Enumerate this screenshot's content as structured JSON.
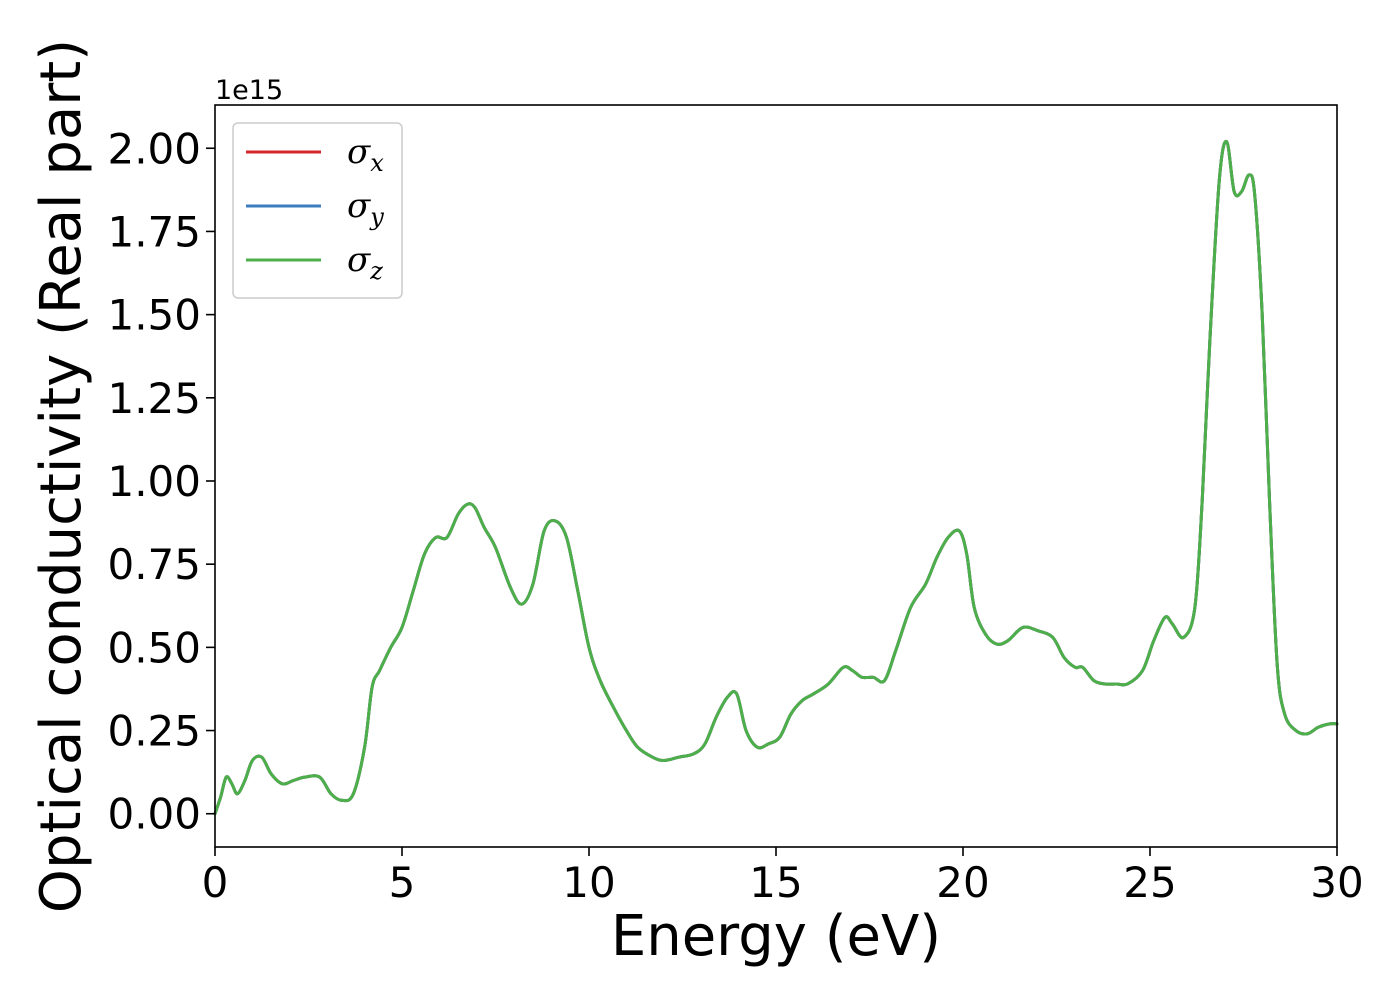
{
  "chart_data": {
    "type": "line",
    "title": "",
    "xlabel": "Energy (eV)",
    "ylabel": "Optical conductivity (Real part)",
    "y_offset_label": "1e15",
    "xlim": [
      0,
      30
    ],
    "ylim": [
      -0.1,
      2.13
    ],
    "x_ticks": [
      0,
      5,
      10,
      15,
      20,
      25,
      30
    ],
    "x_tick_labels": [
      "0",
      "5",
      "10",
      "15",
      "20",
      "25",
      "30"
    ],
    "y_ticks": [
      0.0,
      0.25,
      0.5,
      0.75,
      1.0,
      1.25,
      1.5,
      1.75,
      2.0
    ],
    "y_tick_labels": [
      "0.00",
      "0.25",
      "0.50",
      "0.75",
      "1.00",
      "1.25",
      "1.50",
      "1.75",
      "2.00"
    ],
    "grid": false,
    "legend_position": "top-left",
    "legend": [
      {
        "symbol": "σ",
        "sub": "x",
        "color": "#d62728"
      },
      {
        "symbol": "σ",
        "sub": "y",
        "color": "#3b7dbf"
      },
      {
        "symbol": "σ",
        "sub": "z",
        "color": "#4daf4a"
      }
    ],
    "x": [
      0,
      0.15,
      0.3,
      0.45,
      0.6,
      0.8,
      1.0,
      1.25,
      1.5,
      1.8,
      2.1,
      2.4,
      2.8,
      3.1,
      3.4,
      3.7,
      4.0,
      4.2,
      4.4,
      4.7,
      5.0,
      5.3,
      5.6,
      5.9,
      6.2,
      6.5,
      6.75,
      6.95,
      7.2,
      7.5,
      7.9,
      8.2,
      8.5,
      8.8,
      9.1,
      9.4,
      9.7,
      10.0,
      10.3,
      10.7,
      11.0,
      11.3,
      11.7,
      12.0,
      12.4,
      12.8,
      13.1,
      13.4,
      13.7,
      13.95,
      14.2,
      14.5,
      14.8,
      15.1,
      15.4,
      15.7,
      16.0,
      16.4,
      16.8,
      17.05,
      17.3,
      17.6,
      17.9,
      18.2,
      18.6,
      19.0,
      19.3,
      19.6,
      19.9,
      20.1,
      20.3,
      20.6,
      20.9,
      21.2,
      21.6,
      22.0,
      22.4,
      22.7,
      23.0,
      23.2,
      23.5,
      23.8,
      24.1,
      24.4,
      24.8,
      25.1,
      25.4,
      25.6,
      25.9,
      26.2,
      26.4,
      26.6,
      26.85,
      27.05,
      27.25,
      27.45,
      27.65,
      27.8,
      28.0,
      28.2,
      28.4,
      28.6,
      28.9,
      29.2,
      29.5,
      29.8,
      30.0
    ],
    "series": [
      {
        "name": "σx",
        "color": "#d62728",
        "values": [
          0.0,
          0.05,
          0.11,
          0.09,
          0.06,
          0.1,
          0.16,
          0.17,
          0.12,
          0.09,
          0.1,
          0.11,
          0.11,
          0.06,
          0.04,
          0.06,
          0.2,
          0.38,
          0.43,
          0.5,
          0.56,
          0.67,
          0.78,
          0.83,
          0.83,
          0.9,
          0.93,
          0.92,
          0.86,
          0.8,
          0.68,
          0.63,
          0.69,
          0.85,
          0.88,
          0.83,
          0.67,
          0.5,
          0.4,
          0.31,
          0.25,
          0.2,
          0.17,
          0.16,
          0.17,
          0.18,
          0.21,
          0.29,
          0.35,
          0.36,
          0.25,
          0.2,
          0.21,
          0.23,
          0.3,
          0.34,
          0.36,
          0.39,
          0.44,
          0.43,
          0.41,
          0.41,
          0.4,
          0.49,
          0.62,
          0.69,
          0.77,
          0.83,
          0.85,
          0.78,
          0.62,
          0.54,
          0.51,
          0.52,
          0.56,
          0.55,
          0.53,
          0.47,
          0.44,
          0.44,
          0.4,
          0.39,
          0.39,
          0.39,
          0.43,
          0.52,
          0.59,
          0.57,
          0.53,
          0.62,
          0.95,
          1.42,
          1.9,
          2.02,
          1.87,
          1.87,
          1.92,
          1.86,
          1.5,
          0.93,
          0.45,
          0.3,
          0.25,
          0.24,
          0.26,
          0.27,
          0.27
        ]
      },
      {
        "name": "σy",
        "color": "#3b7dbf",
        "values": [
          0.0,
          0.05,
          0.11,
          0.09,
          0.06,
          0.1,
          0.16,
          0.17,
          0.12,
          0.09,
          0.1,
          0.11,
          0.11,
          0.06,
          0.04,
          0.06,
          0.2,
          0.38,
          0.43,
          0.5,
          0.56,
          0.67,
          0.78,
          0.83,
          0.83,
          0.9,
          0.93,
          0.92,
          0.86,
          0.8,
          0.68,
          0.63,
          0.69,
          0.85,
          0.88,
          0.83,
          0.67,
          0.5,
          0.4,
          0.31,
          0.25,
          0.2,
          0.17,
          0.16,
          0.17,
          0.18,
          0.21,
          0.29,
          0.35,
          0.36,
          0.25,
          0.2,
          0.21,
          0.23,
          0.3,
          0.34,
          0.36,
          0.39,
          0.44,
          0.43,
          0.41,
          0.41,
          0.4,
          0.49,
          0.62,
          0.69,
          0.77,
          0.83,
          0.85,
          0.78,
          0.62,
          0.54,
          0.51,
          0.52,
          0.56,
          0.55,
          0.53,
          0.47,
          0.44,
          0.44,
          0.4,
          0.39,
          0.39,
          0.39,
          0.43,
          0.52,
          0.59,
          0.57,
          0.53,
          0.62,
          0.95,
          1.42,
          1.9,
          2.02,
          1.87,
          1.87,
          1.92,
          1.86,
          1.5,
          0.93,
          0.45,
          0.3,
          0.25,
          0.24,
          0.26,
          0.27,
          0.27
        ]
      },
      {
        "name": "σz",
        "color": "#4daf4a",
        "values": [
          0.0,
          0.05,
          0.11,
          0.09,
          0.06,
          0.1,
          0.16,
          0.17,
          0.12,
          0.09,
          0.1,
          0.11,
          0.11,
          0.06,
          0.04,
          0.06,
          0.2,
          0.38,
          0.43,
          0.5,
          0.56,
          0.67,
          0.78,
          0.83,
          0.83,
          0.9,
          0.93,
          0.92,
          0.86,
          0.8,
          0.68,
          0.63,
          0.69,
          0.85,
          0.88,
          0.83,
          0.67,
          0.5,
          0.4,
          0.31,
          0.25,
          0.2,
          0.17,
          0.16,
          0.17,
          0.18,
          0.21,
          0.29,
          0.35,
          0.36,
          0.25,
          0.2,
          0.21,
          0.23,
          0.3,
          0.34,
          0.36,
          0.39,
          0.44,
          0.43,
          0.41,
          0.41,
          0.4,
          0.49,
          0.62,
          0.69,
          0.77,
          0.83,
          0.85,
          0.78,
          0.62,
          0.54,
          0.51,
          0.52,
          0.56,
          0.55,
          0.53,
          0.47,
          0.44,
          0.44,
          0.4,
          0.39,
          0.39,
          0.39,
          0.43,
          0.52,
          0.59,
          0.57,
          0.53,
          0.62,
          0.95,
          1.42,
          1.9,
          2.02,
          1.87,
          1.87,
          1.92,
          1.86,
          1.5,
          0.93,
          0.45,
          0.3,
          0.25,
          0.24,
          0.26,
          0.27,
          0.27
        ]
      }
    ]
  }
}
